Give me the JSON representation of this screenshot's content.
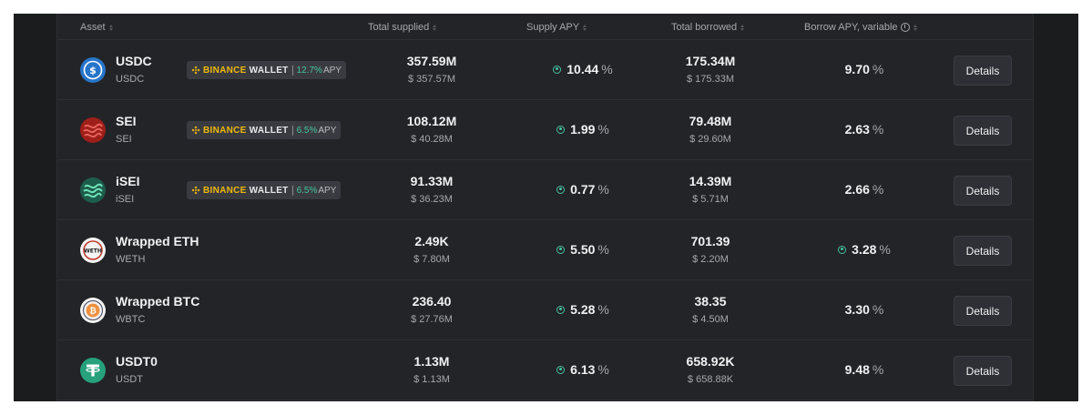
{
  "header": {
    "asset": "Asset",
    "total_supplied": "Total supplied",
    "supply_apy": "Supply APY",
    "total_borrowed": "Total borrowed",
    "borrow_apy": "Borrow APY, variable",
    "info_glyph": "i"
  },
  "badge": {
    "binance": "BINANCE",
    "wallet": "WALLET",
    "apy_label": "APY",
    "percent": "%"
  },
  "percent_sign": "%",
  "rows": [
    {
      "name": "USDC",
      "symbol": "USDC",
      "badge_value": "12.7",
      "supplied": "357.59M",
      "supplied_usd": "$ 357.57M",
      "supply_apy": "10.44",
      "borrowed": "175.34M",
      "borrowed_usd": "$ 175.33M",
      "borrow_apy": "9.70",
      "details": "Details",
      "logo": "usdc-icon"
    },
    {
      "name": "SEI",
      "symbol": "SEI",
      "badge_value": "6.5",
      "supplied": "108.12M",
      "supplied_usd": "$ 40.28M",
      "supply_apy": "1.99",
      "borrowed": "79.48M",
      "borrowed_usd": "$ 29.60M",
      "borrow_apy": "2.63",
      "details": "Details",
      "logo": "sei-icon"
    },
    {
      "name": "iSEI",
      "symbol": "iSEI",
      "badge_value": "6.5",
      "supplied": "91.33M",
      "supplied_usd": "$ 36.23M",
      "supply_apy": "0.77",
      "borrowed": "14.39M",
      "borrowed_usd": "$ 5.71M",
      "borrow_apy": "2.66",
      "details": "Details",
      "logo": "isei-icon"
    },
    {
      "name": "Wrapped ETH",
      "symbol": "WETH",
      "logo_text": "WETH",
      "supplied": "2.49K",
      "supplied_usd": "$ 7.80M",
      "supply_apy": "5.50",
      "borrowed": "701.39",
      "borrowed_usd": "$ 2.20M",
      "borrow_apy": "3.28",
      "details": "Details",
      "logo": "weth-icon"
    },
    {
      "name": "Wrapped BTC",
      "symbol": "WBTC",
      "logo_text": "₿",
      "supplied": "236.40",
      "supplied_usd": "$ 27.76M",
      "supply_apy": "5.28",
      "borrowed": "38.35",
      "borrowed_usd": "$ 4.50M",
      "borrow_apy": "3.30",
      "details": "Details",
      "logo": "wbtc-icon"
    },
    {
      "name": "USDT0",
      "symbol": "USDT",
      "supplied": "1.13M",
      "supplied_usd": "$ 1.13M",
      "supply_apy": "6.13",
      "borrowed": "658.92K",
      "borrowed_usd": "$ 658.88K",
      "borrow_apy": "9.48",
      "details": "Details",
      "logo": "usdt-icon"
    }
  ],
  "colors": {
    "accent_green": "#46c3a3",
    "binance_yellow": "#f0b90b",
    "usdc_blue": "#2775ca",
    "sei_red": "#9e1f19",
    "usdt_green": "#26a17b",
    "wbtc_orange": "#f09242"
  }
}
